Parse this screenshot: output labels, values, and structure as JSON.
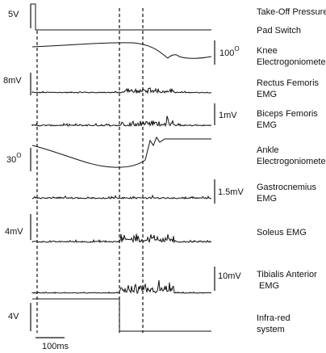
{
  "traces": [
    {
      "label": [
        "Take-Off Pressure",
        "Pad Switch"
      ],
      "scale": "5V"
    },
    {
      "label": [
        "Knee",
        "Electrogoniometer"
      ],
      "scale": {
        "text": "100",
        "superscript": "O"
      }
    },
    {
      "label": [
        "Rectus Femoris",
        "EMG"
      ],
      "scale": "8mV"
    },
    {
      "label": [
        "Biceps Femoris",
        "EMG"
      ],
      "scale": "1mV"
    },
    {
      "label": [
        "Ankle",
        "Electrogoniometer"
      ],
      "scale": {
        "text": "30",
        "superscript": "O"
      }
    },
    {
      "label": [
        "Gastrocnemius",
        "EMG"
      ],
      "scale": "1.5mV"
    },
    {
      "label": [
        "Soleus EMG"
      ],
      "scale": "4mV"
    },
    {
      "label": [
        "Tibialis Anterior",
        " EMG"
      ],
      "scale": "10mV"
    },
    {
      "label": [
        "Infra-red",
        "system"
      ],
      "scale": "4V"
    }
  ],
  "time_scale": "100ms"
}
